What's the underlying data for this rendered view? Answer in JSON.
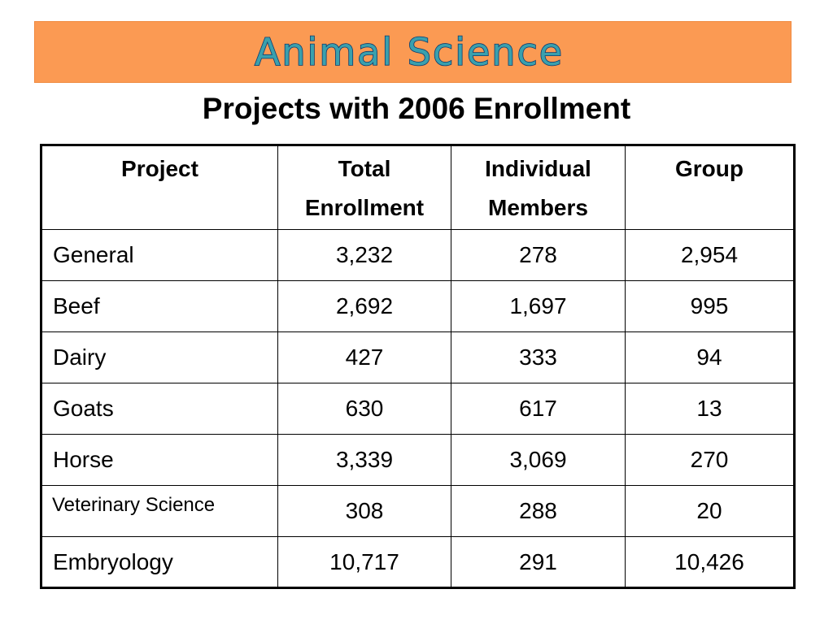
{
  "banner": {
    "title": "Animal Science",
    "background_color": "#fb9a53",
    "text_fill_color": "#3aa0ad",
    "text_outline_color": "#0c3a6e"
  },
  "subtitle": "Projects with 2006 Enrollment",
  "table": {
    "headers": [
      {
        "line1": "Project",
        "line2": ""
      },
      {
        "line1": "Total",
        "line2": "Enrollment"
      },
      {
        "line1": "Individual",
        "line2": "Members"
      },
      {
        "line1": "Group",
        "line2": ""
      }
    ],
    "rows": [
      {
        "project": "General",
        "total": "3,232",
        "individual": "278",
        "group": "2,954"
      },
      {
        "project": "Beef",
        "total": "2,692",
        "individual": "1,697",
        "group": "995"
      },
      {
        "project": "Dairy",
        "total": "427",
        "individual": "333",
        "group": "94"
      },
      {
        "project": "Goats",
        "total": "630",
        "individual": "617",
        "group": "13"
      },
      {
        "project": "Horse",
        "total": "3,339",
        "individual": "3,069",
        "group": "270"
      },
      {
        "project": "Veterinary Science",
        "total": "308",
        "individual": "288",
        "group": "20"
      },
      {
        "project": "Embryology",
        "total": "10,717",
        "individual": "291",
        "group": "10,426"
      }
    ]
  }
}
